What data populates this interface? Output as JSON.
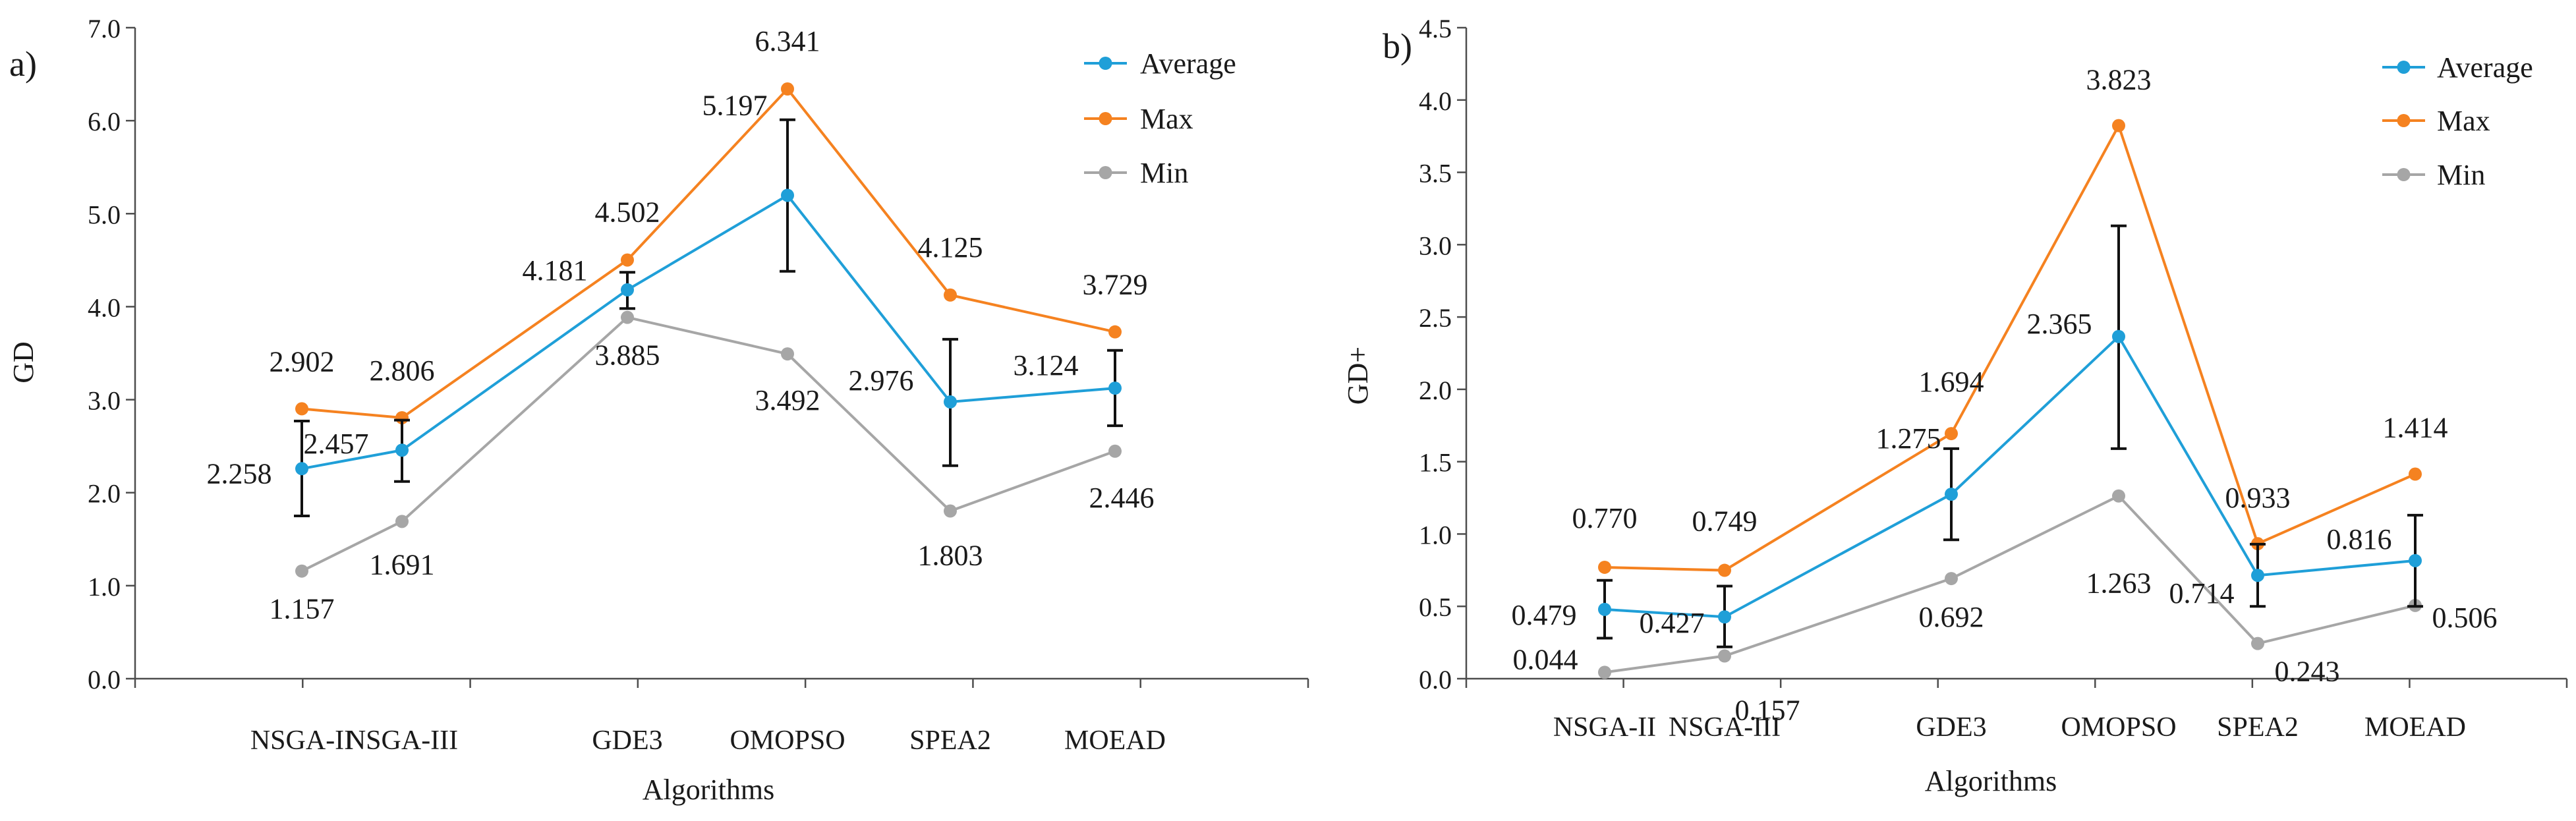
{
  "chart_data": [
    {
      "type": "line",
      "panel_label": "a)",
      "title": "",
      "xlabel": "Algorithms",
      "ylabel": "GD",
      "categories": [
        "NSGA-II",
        "NSGA-III",
        "GDE3",
        "OMOPSO",
        "SPEA2",
        "MOEAD"
      ],
      "ylim": [
        0,
        7
      ],
      "yticks": [
        "0.0",
        "1.0",
        "2.0",
        "3.0",
        "4.0",
        "5.0",
        "6.0",
        "7.0"
      ],
      "legend_position": "top-right",
      "series": [
        {
          "name": "Average",
          "color": "#1f9fd8",
          "values": [
            2.258,
            2.457,
            4.181,
            5.197,
            2.976,
            3.124
          ],
          "labels": [
            "2.258",
            "2.457",
            "4.181",
            "5.197",
            "2.976",
            "3.124"
          ],
          "error_low": [
            1.75,
            2.12,
            3.98,
            4.38,
            2.29,
            2.72
          ],
          "error_high": [
            2.77,
            2.78,
            4.37,
            6.01,
            3.65,
            3.53
          ]
        },
        {
          "name": "Max",
          "color": "#f58220",
          "values": [
            2.902,
            2.806,
            4.502,
            6.341,
            4.125,
            3.729
          ],
          "labels": [
            "2.902",
            "2.806",
            "4.502",
            "6.341",
            "4.125",
            "3.729"
          ]
        },
        {
          "name": "Min",
          "color": "#a6a6a6",
          "values": [
            1.157,
            1.691,
            3.885,
            3.492,
            1.803,
            2.446
          ],
          "labels": [
            "1.157",
            "1.691",
            "3.885",
            "3.492",
            "1.803",
            "2.446"
          ]
        }
      ]
    },
    {
      "type": "line",
      "panel_label": "b)",
      "title": "",
      "xlabel": "Algorithms",
      "ylabel": "GD+",
      "categories": [
        "NSGA-II",
        "NSGA-III",
        "GDE3",
        "OMOPSO",
        "SPEA2",
        "MOEAD"
      ],
      "ylim": [
        0,
        4.5
      ],
      "yticks": [
        "0.0",
        "0.5",
        "1.0",
        "1.5",
        "2.0",
        "2.5",
        "3.0",
        "3.5",
        "4.0",
        "4.5"
      ],
      "legend_position": "top-right",
      "series": [
        {
          "name": "Average",
          "color": "#1f9fd8",
          "values": [
            0.479,
            0.427,
            1.275,
            2.365,
            0.714,
            0.816
          ],
          "labels": [
            "0.479",
            "0.427",
            "1.275",
            "2.365",
            "0.714",
            "0.816"
          ],
          "error_low": [
            0.28,
            0.22,
            0.96,
            1.59,
            0.5,
            0.5
          ],
          "error_high": [
            0.68,
            0.64,
            1.59,
            3.13,
            0.93,
            1.13
          ]
        },
        {
          "name": "Max",
          "color": "#f58220",
          "values": [
            0.77,
            0.749,
            1.694,
            3.823,
            0.933,
            1.414
          ],
          "labels": [
            "0.770",
            "0.749",
            "1.694",
            "3.823",
            "0.933",
            "1.414"
          ]
        },
        {
          "name": "Min",
          "color": "#a6a6a6",
          "values": [
            0.044,
            0.157,
            0.692,
            1.263,
            0.243,
            0.506
          ],
          "labels": [
            "0.044",
            "0.157",
            "0.692",
            "1.263",
            "0.243",
            "0.506"
          ]
        }
      ]
    }
  ]
}
